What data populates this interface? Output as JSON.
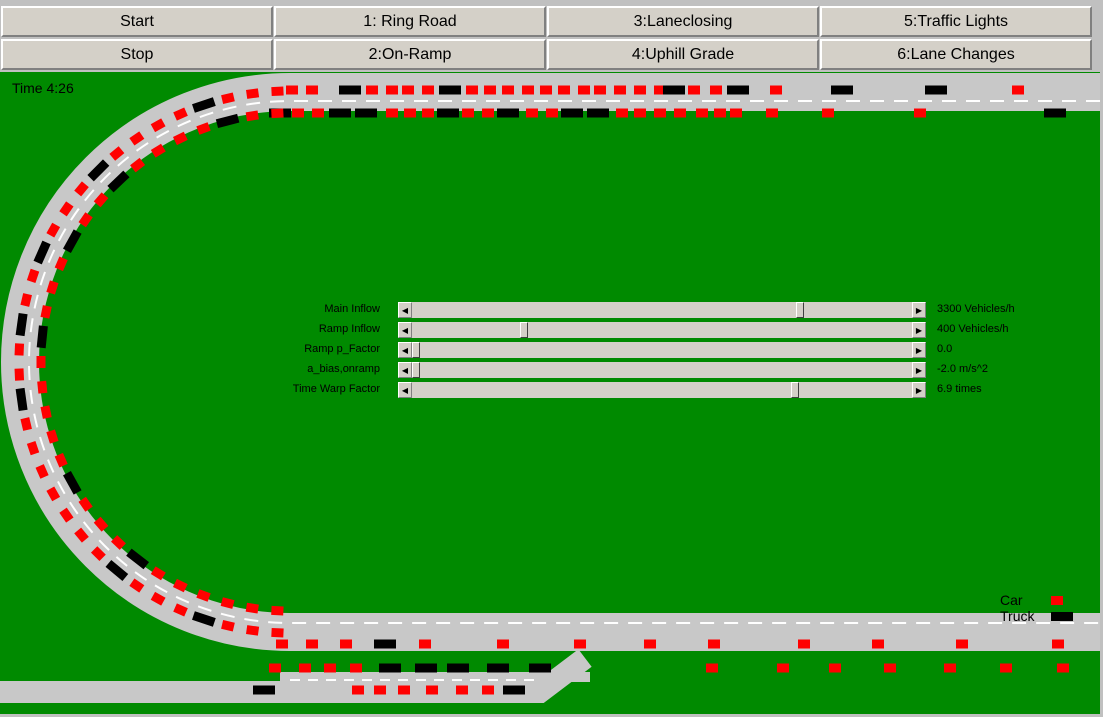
{
  "toolbar": {
    "start_label": "Start",
    "stop_label": "Stop",
    "scenarios": [
      "1: Ring Road",
      "2:On-Ramp",
      "3:Laneclosing",
      "4:Uphill Grade",
      "5:Traffic Lights",
      "6:Lane Changes"
    ]
  },
  "simulation": {
    "time_text": "Time  4:26",
    "colors": {
      "grass": "#008a00",
      "road": "#c8c8c8",
      "car": "#ff0000",
      "truck": "#000000",
      "lane_mark": "#ffffff"
    }
  },
  "controls": [
    {
      "label": "Main Inflow",
      "value": "3300 Vehicles/h",
      "fraction": 0.78
    },
    {
      "label": "Ramp Inflow",
      "value": "400 Vehicles/h",
      "fraction": 0.22
    },
    {
      "label": "Ramp p_Factor",
      "value": "0.0",
      "fraction": 0.0
    },
    {
      "label": "a_bias,onramp",
      "value": "-2.0 m/s^2",
      "fraction": 0.0
    },
    {
      "label": "Time Warp Factor",
      "value": "6.9 times",
      "fraction": 0.77
    }
  ],
  "legend": {
    "car_label": "Car",
    "truck_label": "Truck"
  }
}
